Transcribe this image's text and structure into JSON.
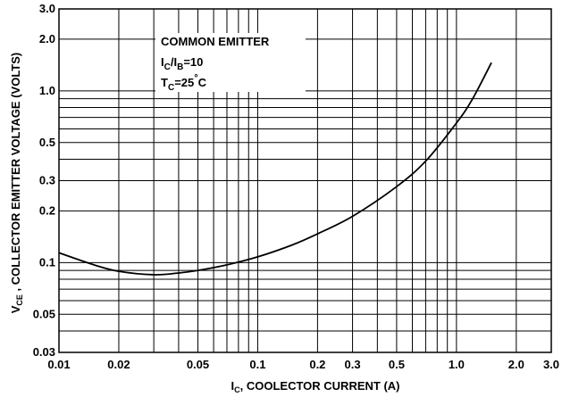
{
  "chart_data": {
    "type": "line",
    "title": "",
    "xscale": "log",
    "yscale": "log",
    "xlim": [
      0.01,
      3.0
    ],
    "ylim": [
      0.03,
      3.0
    ],
    "grid": true,
    "x_ticks": [
      "0.01",
      "0.02",
      "0.05",
      "0.1",
      "0.2",
      "0.3",
      "0.5",
      "1.0",
      "2.0",
      "3.0"
    ],
    "x_tick_values": [
      0.01,
      0.02,
      0.05,
      0.1,
      0.2,
      0.3,
      0.5,
      1.0,
      2.0,
      3.0
    ],
    "y_ticks": [
      "3.0",
      "2.0",
      "1.0",
      "0.5",
      "0.3",
      "0.2",
      "0.1",
      "0.05",
      "0.03"
    ],
    "y_tick_values": [
      3.0,
      2.0,
      1.0,
      0.5,
      0.3,
      0.2,
      0.1,
      0.05,
      0.03
    ],
    "xlabel": {
      "sym_main": "I",
      "sym_sub": "C",
      "text": ", COOLECTOR CURRENT (A)"
    },
    "ylabel": {
      "sym_main": "V",
      "sym_sub": "CE",
      "text": " , COLLECTOR EMITTER VOLTAGE (VOLTS)"
    },
    "annotations": {
      "line1": "COMMON EMITTER",
      "line2_i1": "I",
      "line2_c": "C",
      "line2_slash": "/I",
      "line2_b": "B",
      "line2_val": "=10",
      "line3_t": "T",
      "line3_c": "C",
      "line3_val": "=25",
      "line3_deg": "°",
      "line3_unit": "C"
    },
    "series": [
      {
        "color": "#000000",
        "x": [
          0.01,
          0.015,
          0.02,
          0.03,
          0.04,
          0.05,
          0.07,
          0.1,
          0.15,
          0.2,
          0.3,
          0.5,
          0.7,
          1.0,
          1.2,
          1.5
        ],
        "y": [
          0.114,
          0.097,
          0.089,
          0.085,
          0.087,
          0.09,
          0.097,
          0.108,
          0.127,
          0.147,
          0.186,
          0.277,
          0.39,
          0.65,
          0.89,
          1.46
        ]
      }
    ]
  }
}
